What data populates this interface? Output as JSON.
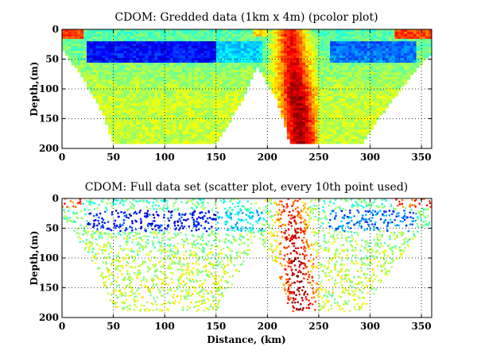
{
  "chart_data": [
    {
      "type": "heatmap",
      "title": "CDOM: Gredded data (1km x 4m) (pcolor plot)",
      "xlabel": "",
      "ylabel": "Depth,(m)",
      "xlim": [
        0,
        360
      ],
      "ylim": [
        200,
        0
      ],
      "x_ticks": [
        "0",
        "50",
        "100",
        "150",
        "200",
        "250",
        "300",
        "350"
      ],
      "y_ticks": [
        "0",
        "50",
        "100",
        "150",
        "200"
      ],
      "grid": true,
      "colormap": "jet",
      "bottom_profile_km_depth": [
        [
          0,
          30
        ],
        [
          20,
          80
        ],
        [
          40,
          140
        ],
        [
          50,
          190
        ],
        [
          150,
          190
        ],
        [
          175,
          120
        ],
        [
          190,
          60
        ],
        [
          210,
          120
        ],
        [
          222,
          190
        ],
        [
          292,
          190
        ],
        [
          320,
          120
        ],
        [
          350,
          55
        ],
        [
          360,
          40
        ]
      ]
    },
    {
      "type": "scatter",
      "title": "CDOM: Full data set (scatter plot, every 10th point used)",
      "xlabel": "Distance, (km)",
      "ylabel": "Depth,(m)",
      "xlim": [
        0,
        360
      ],
      "ylim": [
        200,
        0
      ],
      "x_ticks": [
        "0",
        "50",
        "100",
        "150",
        "200",
        "250",
        "300",
        "350"
      ],
      "y_ticks": [
        "0",
        "50",
        "100",
        "150",
        "200"
      ],
      "grid": true,
      "colormap": "jet"
    }
  ]
}
